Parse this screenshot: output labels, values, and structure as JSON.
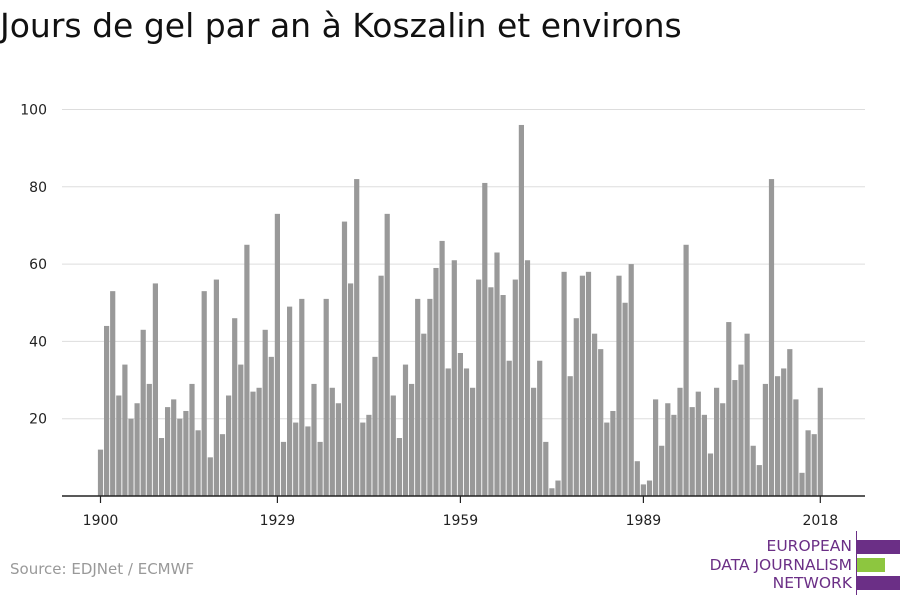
{
  "title": "Jours de gel par an à Koszalin et environs",
  "source": "Source: EDJNet / ECMWF",
  "logo": {
    "lines": [
      "EUROPEAN",
      "DATA JOURNALISM",
      "NETWORK"
    ],
    "colors": {
      "purple": "#6b2f86",
      "green": "#8dc63f"
    }
  },
  "chart_data": {
    "type": "bar",
    "title": "Jours de gel par an à Koszalin et environs",
    "xlabel": "",
    "ylabel": "",
    "bar_color": "#999999",
    "grid": true,
    "ylim": [
      0,
      100
    ],
    "yticks": [
      20,
      40,
      60,
      80,
      100
    ],
    "xticks": [
      1900,
      1929,
      1959,
      1989,
      2018
    ],
    "x": [
      1900,
      1901,
      1902,
      1903,
      1904,
      1905,
      1906,
      1907,
      1908,
      1909,
      1910,
      1911,
      1912,
      1913,
      1914,
      1915,
      1916,
      1917,
      1918,
      1919,
      1920,
      1921,
      1922,
      1923,
      1924,
      1925,
      1926,
      1927,
      1928,
      1929,
      1930,
      1931,
      1932,
      1933,
      1934,
      1935,
      1936,
      1937,
      1938,
      1939,
      1940,
      1941,
      1942,
      1943,
      1944,
      1945,
      1946,
      1947,
      1948,
      1949,
      1950,
      1951,
      1952,
      1953,
      1954,
      1955,
      1956,
      1957,
      1958,
      1959,
      1960,
      1961,
      1962,
      1963,
      1964,
      1965,
      1966,
      1967,
      1968,
      1969,
      1970,
      1971,
      1972,
      1973,
      1974,
      1975,
      1976,
      1977,
      1978,
      1979,
      1980,
      1981,
      1982,
      1983,
      1984,
      1985,
      1986,
      1987,
      1988,
      1989,
      1990,
      1991,
      1992,
      1993,
      1994,
      1995,
      1996,
      1997,
      1998,
      1999,
      2000,
      2001,
      2002,
      2003,
      2004,
      2005,
      2006,
      2007,
      2008,
      2009,
      2010,
      2011,
      2012,
      2013,
      2014,
      2015,
      2016,
      2017,
      2018
    ],
    "values": [
      12,
      44,
      53,
      26,
      34,
      20,
      24,
      43,
      29,
      55,
      15,
      23,
      25,
      20,
      22,
      29,
      17,
      53,
      10,
      56,
      16,
      26,
      46,
      34,
      65,
      27,
      28,
      43,
      36,
      73,
      14,
      49,
      19,
      51,
      18,
      29,
      14,
      51,
      28,
      24,
      71,
      55,
      82,
      19,
      21,
      36,
      57,
      73,
      26,
      15,
      34,
      29,
      51,
      42,
      51,
      59,
      66,
      33,
      61,
      37,
      33,
      28,
      56,
      81,
      54,
      63,
      52,
      35,
      56,
      96,
      61,
      28,
      35,
      14,
      2,
      4,
      58,
      31,
      46,
      57,
      58,
      42,
      38,
      19,
      22,
      57,
      50,
      60,
      9,
      3,
      4,
      25,
      13,
      24,
      21,
      28,
      65,
      23,
      27,
      21,
      11,
      28,
      24,
      45,
      30,
      34,
      42,
      13,
      8,
      29,
      82,
      31,
      33,
      38,
      25,
      6,
      17,
      16,
      28
    ]
  }
}
